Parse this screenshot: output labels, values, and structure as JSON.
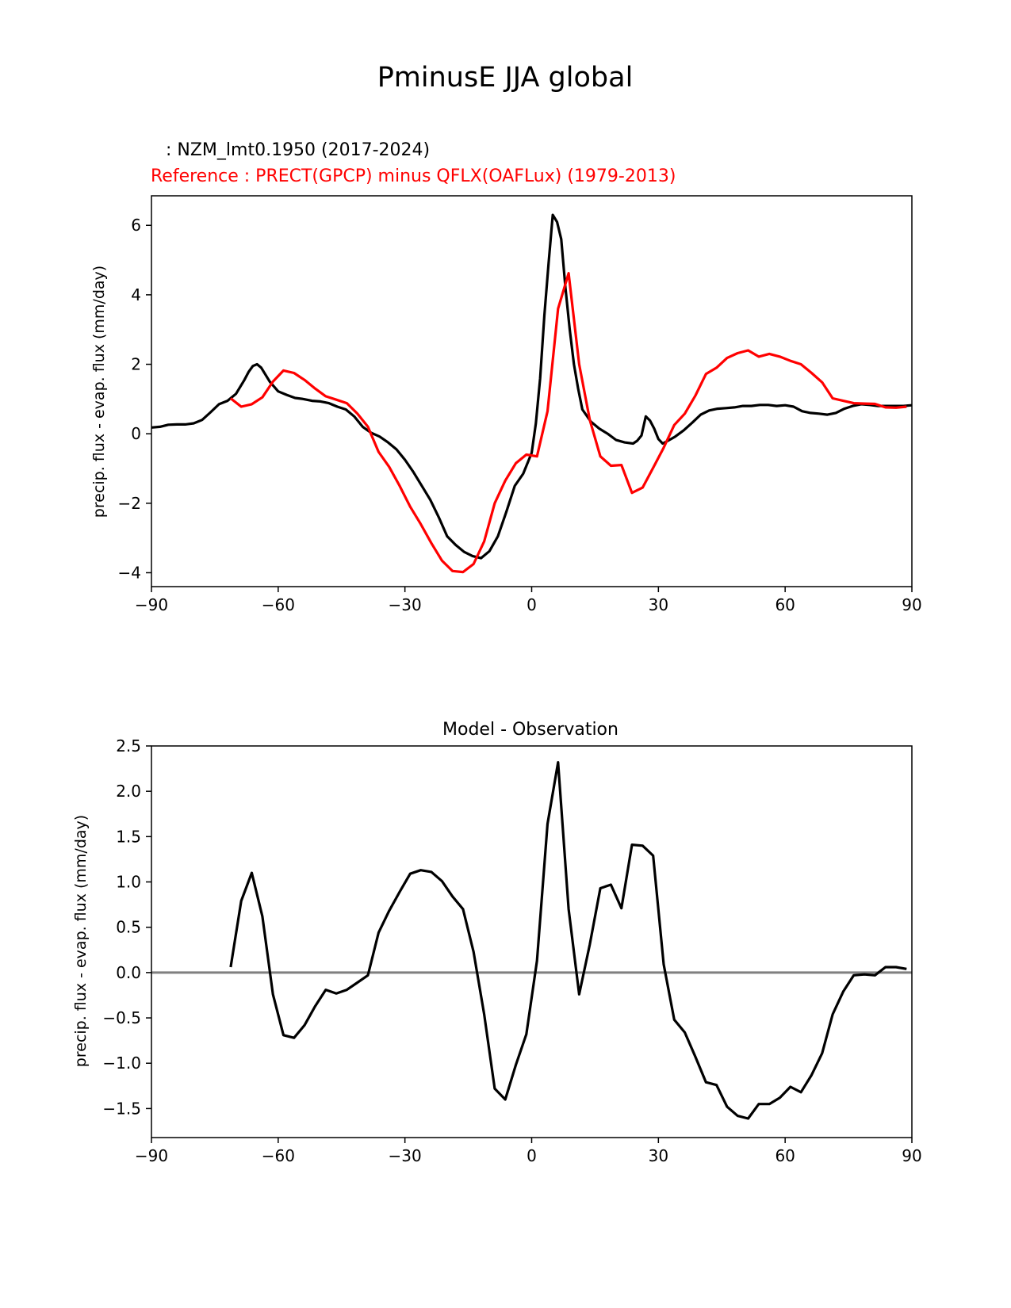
{
  "figure_title": "PminusE JJA global",
  "colors": {
    "test": "#000000",
    "reference": "#ff0000",
    "zero_line": "#808080",
    "axes": "#000000"
  },
  "chart_data": [
    {
      "type": "line",
      "test_label": " : NZM_lmt0.1950 (2017-2024)",
      "reference_label": "Reference : PRECT(GPCP) minus QFLX(OAFLux) (1979-2013)",
      "ylabel": "precip. flux - evap. flux (mm/day)",
      "xlim": [
        -90,
        90
      ],
      "ylim": [
        -4.4,
        6.85
      ],
      "xticks": [
        -90,
        -60,
        -30,
        0,
        30,
        60,
        90
      ],
      "xtick_labels": [
        "−90",
        "−60",
        "−30",
        "0",
        "30",
        "60",
        "90"
      ],
      "yticks": [
        -4,
        -2,
        0,
        2,
        4,
        6
      ],
      "ytick_labels": [
        "−4",
        "−2",
        "0",
        "2",
        "4",
        "6"
      ],
      "series": [
        {
          "name": "test",
          "color": "#000000",
          "x": [
            -90,
            -88,
            -86,
            -84,
            -82,
            -80,
            -78,
            -76,
            -74,
            -72,
            -70,
            -68,
            -67,
            -66,
            -65,
            -64,
            -62,
            -60,
            -58,
            -56,
            -54,
            -52,
            -50,
            -48,
            -46,
            -44,
            -42,
            -40,
            -38,
            -36,
            -34,
            -32,
            -30,
            -28,
            -26,
            -24,
            -22,
            -20,
            -18,
            -16,
            -14,
            -12,
            -10,
            -8,
            -6,
            -4,
            -2,
            0,
            1,
            2,
            3,
            4,
            5,
            6,
            7,
            8,
            9,
            10,
            11,
            12,
            14,
            16,
            18,
            20,
            22,
            24,
            25,
            26,
            27,
            28,
            29,
            30,
            31,
            32,
            34,
            36,
            38,
            40,
            42,
            44,
            46,
            48,
            50,
            52,
            54,
            56,
            58,
            60,
            62,
            64,
            66,
            68,
            70,
            72,
            74,
            76,
            78,
            80,
            82,
            84,
            86,
            88,
            90
          ],
          "y": [
            0.18,
            0.2,
            0.26,
            0.27,
            0.27,
            0.3,
            0.4,
            0.62,
            0.85,
            0.95,
            1.15,
            1.55,
            1.78,
            1.95,
            2.0,
            1.9,
            1.5,
            1.22,
            1.12,
            1.03,
            1.0,
            0.95,
            0.93,
            0.88,
            0.78,
            0.7,
            0.5,
            0.2,
            0.03,
            -0.08,
            -0.25,
            -0.45,
            -0.75,
            -1.1,
            -1.5,
            -1.9,
            -2.4,
            -2.95,
            -3.2,
            -3.4,
            -3.52,
            -3.58,
            -3.38,
            -2.95,
            -2.25,
            -1.5,
            -1.15,
            -0.55,
            0.3,
            1.6,
            3.4,
            4.9,
            6.3,
            6.1,
            5.6,
            4.2,
            3.0,
            2.0,
            1.3,
            0.7,
            0.35,
            0.15,
            0.0,
            -0.18,
            -0.25,
            -0.28,
            -0.2,
            -0.05,
            0.5,
            0.38,
            0.15,
            -0.15,
            -0.28,
            -0.22,
            -0.08,
            0.1,
            0.32,
            0.55,
            0.67,
            0.72,
            0.74,
            0.76,
            0.8,
            0.8,
            0.83,
            0.83,
            0.8,
            0.82,
            0.78,
            0.65,
            0.6,
            0.58,
            0.55,
            0.6,
            0.72,
            0.8,
            0.85,
            0.83,
            0.8,
            0.8,
            0.8,
            0.8,
            0.82
          ]
        },
        {
          "name": "reference",
          "color": "#ff0000",
          "x": [
            -71.25,
            -68.75,
            -66.25,
            -63.75,
            -61.25,
            -58.75,
            -56.25,
            -53.75,
            -51.25,
            -48.75,
            -46.25,
            -43.75,
            -41.25,
            -38.75,
            -36.25,
            -33.75,
            -31.25,
            -28.75,
            -26.25,
            -23.75,
            -21.25,
            -18.75,
            -16.25,
            -13.75,
            -11.25,
            -8.75,
            -6.25,
            -3.75,
            -1.25,
            1.25,
            3.75,
            6.25,
            8.75,
            11.25,
            13.75,
            16.25,
            18.75,
            21.25,
            23.75,
            26.25,
            28.75,
            31.25,
            33.75,
            36.25,
            38.75,
            41.25,
            43.75,
            46.25,
            48.75,
            51.25,
            53.75,
            56.25,
            58.75,
            61.25,
            63.75,
            66.25,
            68.75,
            71.25,
            73.75,
            76.25,
            78.75,
            81.25,
            83.75,
            86.25,
            88.75
          ],
          "y": [
            1.02,
            0.78,
            0.85,
            1.05,
            1.5,
            1.82,
            1.75,
            1.55,
            1.3,
            1.08,
            0.98,
            0.88,
            0.58,
            0.2,
            -0.52,
            -0.95,
            -1.5,
            -2.1,
            -2.6,
            -3.15,
            -3.65,
            -3.95,
            -3.98,
            -3.75,
            -3.1,
            -2.0,
            -1.35,
            -0.85,
            -0.6,
            -0.65,
            0.65,
            3.6,
            4.62,
            2.0,
            0.4,
            -0.65,
            -0.92,
            -0.9,
            -1.7,
            -1.55,
            -0.98,
            -0.4,
            0.25,
            0.58,
            1.1,
            1.72,
            1.9,
            2.18,
            2.32,
            2.4,
            2.22,
            2.3,
            2.22,
            2.1,
            2.0,
            1.75,
            1.48,
            1.02,
            0.95,
            0.88,
            0.87,
            0.86,
            0.76,
            0.75,
            0.78
          ]
        }
      ]
    },
    {
      "type": "line",
      "title": "Model - Observation",
      "ylabel": "precip. flux - evap. flux (mm/day)",
      "xlim": [
        -90,
        90
      ],
      "ylim": [
        -1.82,
        2.5
      ],
      "xticks": [
        -90,
        -60,
        -30,
        0,
        30,
        60,
        90
      ],
      "xtick_labels": [
        "−90",
        "−60",
        "−30",
        "0",
        "30",
        "60",
        "90"
      ],
      "yticks": [
        -1.5,
        -1.0,
        -0.5,
        0.0,
        0.5,
        1.0,
        1.5,
        2.0,
        2.5
      ],
      "ytick_labels": [
        "−1.5",
        "−1.0",
        "−0.5",
        "0.0",
        "0.5",
        "1.0",
        "1.5",
        "2.0",
        "2.5"
      ],
      "zero_line": 0,
      "series": [
        {
          "name": "difference",
          "color": "#000000",
          "x": [
            -71.25,
            -68.75,
            -66.25,
            -63.75,
            -61.25,
            -58.75,
            -56.25,
            -53.75,
            -51.25,
            -48.75,
            -46.25,
            -43.75,
            -41.25,
            -38.75,
            -36.25,
            -33.75,
            -31.25,
            -28.75,
            -26.25,
            -23.75,
            -21.25,
            -18.75,
            -16.25,
            -13.75,
            -11.25,
            -8.75,
            -6.25,
            -3.75,
            -1.25,
            1.25,
            3.75,
            6.25,
            8.75,
            11.25,
            13.75,
            16.25,
            18.75,
            21.25,
            23.75,
            26.25,
            28.75,
            31.25,
            33.75,
            36.25,
            38.75,
            41.25,
            43.75,
            46.25,
            48.75,
            51.25,
            53.75,
            56.25,
            58.75,
            61.25,
            63.75,
            66.25,
            68.75,
            71.25,
            73.75,
            76.25,
            78.75,
            81.25,
            83.75,
            86.25,
            88.75
          ],
          "y": [
            0.06,
            0.79,
            1.1,
            0.62,
            -0.24,
            -0.69,
            -0.72,
            -0.58,
            -0.37,
            -0.19,
            -0.23,
            -0.19,
            -0.11,
            -0.03,
            0.44,
            0.68,
            0.89,
            1.09,
            1.13,
            1.11,
            1.01,
            0.84,
            0.7,
            0.23,
            -0.46,
            -1.28,
            -1.4,
            -1.02,
            -0.68,
            0.13,
            1.64,
            2.32,
            0.7,
            -0.24,
            0.31,
            0.93,
            0.97,
            0.71,
            1.41,
            1.4,
            1.29,
            0.09,
            -0.52,
            -0.66,
            -0.93,
            -1.21,
            -1.24,
            -1.48,
            -1.58,
            -1.61,
            -1.45,
            -1.45,
            -1.38,
            -1.26,
            -1.32,
            -1.13,
            -0.89,
            -0.46,
            -0.21,
            -0.03,
            -0.02,
            -0.03,
            0.06,
            0.06,
            0.04
          ]
        }
      ]
    }
  ]
}
